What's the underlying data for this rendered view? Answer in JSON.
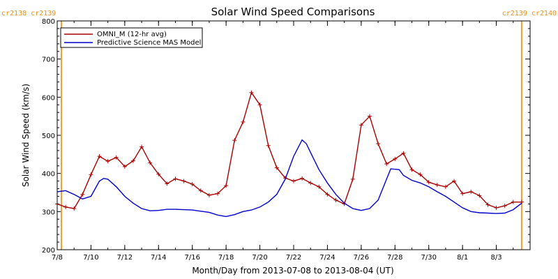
{
  "chart_data": {
    "type": "line",
    "title": "Solar Wind Speed Comparisons",
    "xlabel": "Month/Day from 2013-07-08 to 2013-08-04 (UT)",
    "ylabel": "Solar Wind Speed (km/s)",
    "xlim": [
      "2013-07-08",
      "2013-08-04"
    ],
    "ylim": [
      200,
      800
    ],
    "x_ticks": [
      "7/8",
      "7/10",
      "7/12",
      "7/14",
      "7/16",
      "7/18",
      "7/20",
      "7/22",
      "7/24",
      "7/26",
      "7/28",
      "7/30",
      "8/1",
      "8/3"
    ],
    "y_ticks": [
      200,
      300,
      400,
      500,
      600,
      700,
      800
    ],
    "legend_position": "top-left",
    "carrington_markers": [
      {
        "date": "2013-07-08T06:00",
        "label": "cr2138 cr2139",
        "side": "left"
      },
      {
        "date": "2013-08-04T12:00",
        "label": "cr2139 cr2140",
        "side": "right"
      }
    ],
    "series": [
      {
        "name": "OMNI_M (12-hr avg)",
        "color": "#aa0000",
        "markers": true,
        "points": [
          [
            "2013-07-08T00:00",
            320
          ],
          [
            "2013-07-08T12:00",
            312
          ],
          [
            "2013-07-09T00:00",
            308
          ],
          [
            "2013-07-09T12:00",
            345
          ],
          [
            "2013-07-10T00:00",
            397
          ],
          [
            "2013-07-10T12:00",
            445
          ],
          [
            "2013-07-11T00:00",
            432
          ],
          [
            "2013-07-11T12:00",
            442
          ],
          [
            "2013-07-12T00:00",
            418
          ],
          [
            "2013-07-12T12:00",
            433
          ],
          [
            "2013-07-13T00:00",
            470
          ],
          [
            "2013-07-13T12:00",
            428
          ],
          [
            "2013-07-14T00:00",
            398
          ],
          [
            "2013-07-14T12:00",
            373
          ],
          [
            "2013-07-15T00:00",
            386
          ],
          [
            "2013-07-15T12:00",
            380
          ],
          [
            "2013-07-16T00:00",
            372
          ],
          [
            "2013-07-16T12:00",
            355
          ],
          [
            "2013-07-17T00:00",
            343
          ],
          [
            "2013-07-17T12:00",
            347
          ],
          [
            "2013-07-18T00:00",
            368
          ],
          [
            "2013-07-18T12:00",
            487
          ],
          [
            "2013-07-19T00:00",
            535
          ],
          [
            "2013-07-19T12:00",
            612
          ],
          [
            "2013-07-20T00:00",
            580
          ],
          [
            "2013-07-20T12:00",
            473
          ],
          [
            "2013-07-21T00:00",
            415
          ],
          [
            "2013-07-21T12:00",
            388
          ],
          [
            "2013-07-22T00:00",
            380
          ],
          [
            "2013-07-22T12:00",
            387
          ],
          [
            "2013-07-23T00:00",
            375
          ],
          [
            "2013-07-23T12:00",
            365
          ],
          [
            "2013-07-24T00:00",
            345
          ],
          [
            "2013-07-24T12:00",
            330
          ],
          [
            "2013-07-25T00:00",
            320
          ],
          [
            "2013-07-25T12:00",
            385
          ],
          [
            "2013-07-26T00:00",
            527
          ],
          [
            "2013-07-26T12:00",
            550
          ],
          [
            "2013-07-27T00:00",
            478
          ],
          [
            "2013-07-27T12:00",
            425
          ],
          [
            "2013-07-28T00:00",
            438
          ],
          [
            "2013-07-28T12:00",
            453
          ],
          [
            "2013-07-29T00:00",
            410
          ],
          [
            "2013-07-29T12:00",
            397
          ],
          [
            "2013-07-30T00:00",
            377
          ],
          [
            "2013-07-30T12:00",
            370
          ],
          [
            "2013-07-31T00:00",
            365
          ],
          [
            "2013-07-31T12:00",
            380
          ],
          [
            "2013-08-01T00:00",
            347
          ],
          [
            "2013-08-01T12:00",
            352
          ],
          [
            "2013-08-02T00:00",
            342
          ],
          [
            "2013-08-02T12:00",
            318
          ],
          [
            "2013-08-03T00:00",
            310
          ],
          [
            "2013-08-03T12:00",
            315
          ],
          [
            "2013-08-04T00:00",
            325
          ],
          [
            "2013-08-04T12:00",
            325
          ]
        ]
      },
      {
        "name": "Predictive Science MAS Model",
        "color": "#0000cc",
        "markers": false,
        "points": [
          [
            "2013-07-08T00:00",
            352
          ],
          [
            "2013-07-08T12:00",
            355
          ],
          [
            "2013-07-09T00:00",
            345
          ],
          [
            "2013-07-09T12:00",
            333
          ],
          [
            "2013-07-10T00:00",
            340
          ],
          [
            "2013-07-10T06:00",
            360
          ],
          [
            "2013-07-10T12:00",
            380
          ],
          [
            "2013-07-10T18:00",
            387
          ],
          [
            "2013-07-11T00:00",
            385
          ],
          [
            "2013-07-11T12:00",
            365
          ],
          [
            "2013-07-12T00:00",
            340
          ],
          [
            "2013-07-12T12:00",
            322
          ],
          [
            "2013-07-13T00:00",
            308
          ],
          [
            "2013-07-13T12:00",
            302
          ],
          [
            "2013-07-14T00:00",
            303
          ],
          [
            "2013-07-14T12:00",
            306
          ],
          [
            "2013-07-15T00:00",
            306
          ],
          [
            "2013-07-15T12:00",
            305
          ],
          [
            "2013-07-16T00:00",
            304
          ],
          [
            "2013-07-16T12:00",
            301
          ],
          [
            "2013-07-17T00:00",
            298
          ],
          [
            "2013-07-17T12:00",
            291
          ],
          [
            "2013-07-18T00:00",
            287
          ],
          [
            "2013-07-18T12:00",
            292
          ],
          [
            "2013-07-19T00:00",
            300
          ],
          [
            "2013-07-19T12:00",
            304
          ],
          [
            "2013-07-20T00:00",
            312
          ],
          [
            "2013-07-20T12:00",
            325
          ],
          [
            "2013-07-21T00:00",
            345
          ],
          [
            "2013-07-21T12:00",
            385
          ],
          [
            "2013-07-22T00:00",
            445
          ],
          [
            "2013-07-22T12:00",
            488
          ],
          [
            "2013-07-22T18:00",
            478
          ],
          [
            "2013-07-23T00:00",
            455
          ],
          [
            "2013-07-23T12:00",
            410
          ],
          [
            "2013-07-24T00:00",
            375
          ],
          [
            "2013-07-24T12:00",
            345
          ],
          [
            "2013-07-25T00:00",
            322
          ],
          [
            "2013-07-25T12:00",
            308
          ],
          [
            "2013-07-26T00:00",
            303
          ],
          [
            "2013-07-26T12:00",
            308
          ],
          [
            "2013-07-27T00:00",
            330
          ],
          [
            "2013-07-27T12:00",
            385
          ],
          [
            "2013-07-27T18:00",
            412
          ],
          [
            "2013-07-28T06:00",
            410
          ],
          [
            "2013-07-28T12:00",
            395
          ],
          [
            "2013-07-29T00:00",
            382
          ],
          [
            "2013-07-29T12:00",
            375
          ],
          [
            "2013-07-30T00:00",
            365
          ],
          [
            "2013-07-30T12:00",
            352
          ],
          [
            "2013-07-31T00:00",
            340
          ],
          [
            "2013-07-31T12:00",
            325
          ],
          [
            "2013-08-01T00:00",
            310
          ],
          [
            "2013-08-01T12:00",
            300
          ],
          [
            "2013-08-02T00:00",
            297
          ],
          [
            "2013-08-02T12:00",
            296
          ],
          [
            "2013-08-03T00:00",
            295
          ],
          [
            "2013-08-03T12:00",
            296
          ],
          [
            "2013-08-04T00:00",
            305
          ],
          [
            "2013-08-04T12:00",
            322
          ]
        ]
      }
    ]
  }
}
